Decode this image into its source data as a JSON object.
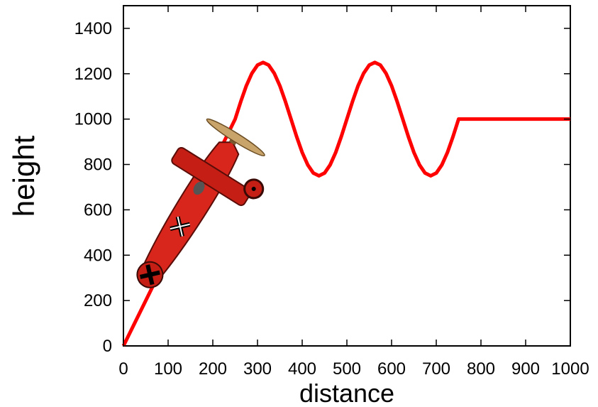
{
  "chart_data": {
    "type": "line",
    "x_label": "distance",
    "y_label": "height",
    "xlim": [
      0,
      1000
    ],
    "ylim": [
      0,
      1500
    ],
    "xticks": [
      0,
      100,
      200,
      300,
      400,
      500,
      600,
      700,
      800,
      900,
      1000
    ],
    "yticks": [
      0,
      200,
      400,
      600,
      800,
      1000,
      1200,
      1400
    ],
    "x": [
      0,
      250,
      262.5,
      275,
      287.5,
      300,
      312.5,
      325,
      337.5,
      350,
      362.5,
      375,
      387.5,
      400,
      412.5,
      425,
      437.5,
      450,
      462.5,
      475,
      487.5,
      500,
      512.5,
      525,
      537.5,
      550,
      562.5,
      575,
      587.5,
      600,
      612.5,
      625,
      637.5,
      650,
      662.5,
      675,
      687.5,
      700,
      712.5,
      725,
      737.5,
      750,
      1000
    ],
    "series": [
      {
        "color": "#ff0000",
        "values": [
          0,
          1000,
          1077,
          1147,
          1202,
          1238,
          1250,
          1238,
          1202,
          1147,
          1077,
          1000,
          923,
          853,
          798,
          762,
          750,
          762,
          798,
          853,
          923,
          1000,
          1077,
          1147,
          1202,
          1238,
          1250,
          1238,
          1202,
          1147,
          1077,
          1000,
          923,
          853,
          798,
          762,
          750,
          762,
          798,
          853,
          923,
          1000,
          1000
        ]
      }
    ]
  }
}
